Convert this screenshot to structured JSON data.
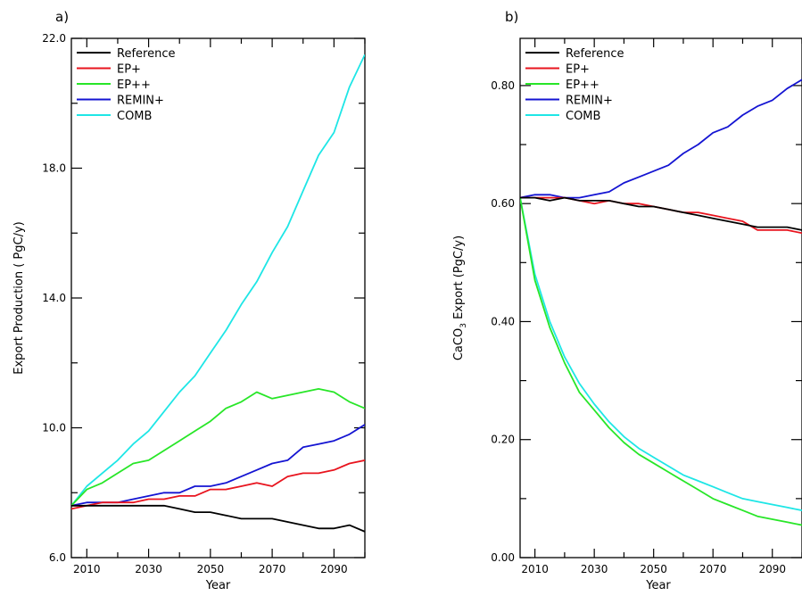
{
  "colors": {
    "Reference": "#000000",
    "EP+": "#e8141e",
    "EP++": "#28e628",
    "REMIN+": "#1414d2",
    "COMB": "#1ee6e6"
  },
  "chart_data": [
    {
      "type": "line",
      "panel_label": "a)",
      "xlabel": "Year",
      "ylabel": "Export Production ( PgC/y)",
      "xlim": [
        2005,
        2100
      ],
      "ylim": [
        6.0,
        22.0
      ],
      "xticks": [
        2010,
        2030,
        2050,
        2070,
        2090
      ],
      "xtick_labels": [
        "2010",
        "2030",
        "2050",
        "2070",
        "2090"
      ],
      "yticks": [
        6.0,
        10.0,
        14.0,
        18.0,
        22.0
      ],
      "ytick_labels": [
        "6.0",
        "10.0",
        "14.0",
        "18.0",
        "22.0"
      ],
      "legend_position": "top-left",
      "x": [
        2005,
        2010,
        2015,
        2020,
        2025,
        2030,
        2035,
        2040,
        2045,
        2050,
        2055,
        2060,
        2065,
        2070,
        2075,
        2080,
        2085,
        2090,
        2095,
        2100
      ],
      "series": [
        {
          "name": "Reference",
          "values": [
            7.6,
            7.6,
            7.6,
            7.6,
            7.6,
            7.6,
            7.6,
            7.5,
            7.4,
            7.4,
            7.3,
            7.2,
            7.2,
            7.2,
            7.1,
            7.0,
            6.9,
            6.9,
            7.0,
            6.8
          ]
        },
        {
          "name": "EP+",
          "values": [
            7.5,
            7.6,
            7.7,
            7.7,
            7.7,
            7.8,
            7.8,
            7.9,
            7.9,
            8.1,
            8.1,
            8.2,
            8.3,
            8.2,
            8.5,
            8.6,
            8.6,
            8.7,
            8.9,
            9.0
          ]
        },
        {
          "name": "EP++",
          "values": [
            7.6,
            8.1,
            8.3,
            8.6,
            8.9,
            9.0,
            9.3,
            9.6,
            9.9,
            10.2,
            10.6,
            10.8,
            11.1,
            10.9,
            11.0,
            11.1,
            11.2,
            11.1,
            10.8,
            10.6
          ]
        },
        {
          "name": "REMIN+",
          "values": [
            7.6,
            7.7,
            7.7,
            7.7,
            7.8,
            7.9,
            8.0,
            8.0,
            8.2,
            8.2,
            8.3,
            8.5,
            8.7,
            8.9,
            9.0,
            9.4,
            9.5,
            9.6,
            9.8,
            10.1
          ]
        },
        {
          "name": "COMB",
          "values": [
            7.6,
            8.2,
            8.6,
            9.0,
            9.5,
            9.9,
            10.5,
            11.1,
            11.6,
            12.3,
            13.0,
            13.8,
            14.5,
            15.4,
            16.2,
            17.3,
            18.4,
            19.1,
            20.5,
            21.5
          ]
        }
      ]
    },
    {
      "type": "line",
      "panel_label": "b)",
      "xlabel": "Year",
      "ylabel_main": "CaCO",
      "ylabel_sub": "3",
      "ylabel_rest": " Export  (PgC/y)",
      "xlim": [
        2005,
        2100
      ],
      "ylim": [
        0.0,
        0.88
      ],
      "xticks": [
        2010,
        2030,
        2050,
        2070,
        2090
      ],
      "xtick_labels": [
        "2010",
        "2030",
        "2050",
        "2070",
        "2090"
      ],
      "yticks": [
        0.0,
        0.2,
        0.4,
        0.6,
        0.8
      ],
      "ytick_labels": [
        "0.00",
        "0.20",
        "0.40",
        "0.60",
        "0.80"
      ],
      "legend_position": "top-left",
      "x": [
        2005,
        2010,
        2015,
        2020,
        2025,
        2030,
        2035,
        2040,
        2045,
        2050,
        2055,
        2060,
        2065,
        2070,
        2075,
        2080,
        2085,
        2090,
        2095,
        2100
      ],
      "series": [
        {
          "name": "Reference",
          "values": [
            0.61,
            0.61,
            0.605,
            0.61,
            0.605,
            0.605,
            0.605,
            0.6,
            0.595,
            0.595,
            0.59,
            0.585,
            0.58,
            0.575,
            0.57,
            0.565,
            0.56,
            0.56,
            0.56,
            0.555
          ]
        },
        {
          "name": "EP+",
          "values": [
            0.61,
            0.61,
            0.61,
            0.61,
            0.605,
            0.6,
            0.605,
            0.6,
            0.6,
            0.595,
            0.59,
            0.585,
            0.585,
            0.58,
            0.575,
            0.57,
            0.555,
            0.555,
            0.555,
            0.55
          ]
        },
        {
          "name": "EP++",
          "values": [
            0.61,
            0.47,
            0.39,
            0.33,
            0.28,
            0.25,
            0.22,
            0.195,
            0.175,
            0.16,
            0.145,
            0.13,
            0.115,
            0.1,
            0.09,
            0.08,
            0.07,
            0.065,
            0.06,
            0.055
          ]
        },
        {
          "name": "REMIN+",
          "values": [
            0.61,
            0.615,
            0.615,
            0.61,
            0.61,
            0.615,
            0.62,
            0.635,
            0.645,
            0.655,
            0.665,
            0.685,
            0.7,
            0.72,
            0.73,
            0.75,
            0.765,
            0.775,
            0.795,
            0.81
          ]
        },
        {
          "name": "COMB",
          "values": [
            0.61,
            0.48,
            0.4,
            0.34,
            0.295,
            0.26,
            0.23,
            0.205,
            0.185,
            0.17,
            0.155,
            0.14,
            0.13,
            0.12,
            0.11,
            0.1,
            0.095,
            0.09,
            0.085,
            0.08
          ]
        }
      ]
    }
  ]
}
